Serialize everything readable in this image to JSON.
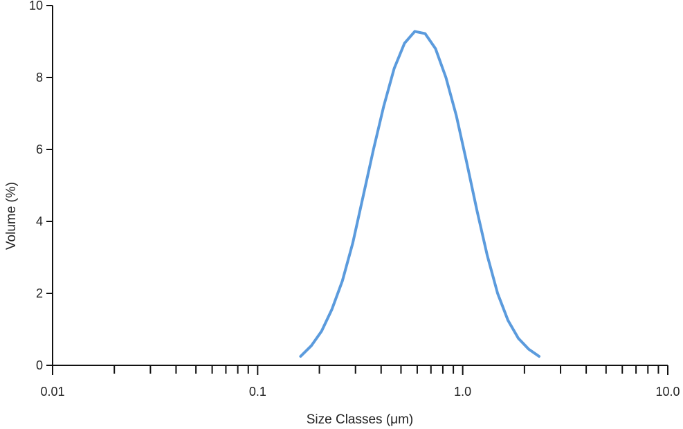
{
  "chart_data": {
    "type": "line",
    "title": "",
    "xlabel": "Size Classes (μm)",
    "ylabel": "Volume (%)",
    "x_scale": "log",
    "xlim": [
      0.01,
      10.0
    ],
    "ylim": [
      0,
      10
    ],
    "grid": false,
    "x_ticks": [
      {
        "value": 0.01,
        "label": "0.01"
      },
      {
        "value": 0.1,
        "label": "0.1"
      },
      {
        "value": 1.0,
        "label": "1.0"
      },
      {
        "value": 10.0,
        "label": "10.0"
      }
    ],
    "y_ticks": [
      {
        "value": 0,
        "label": "0"
      },
      {
        "value": 2,
        "label": "2"
      },
      {
        "value": 4,
        "label": "4"
      },
      {
        "value": 6,
        "label": "6"
      },
      {
        "value": 8,
        "label": "8"
      },
      {
        "value": 10,
        "label": "10"
      }
    ],
    "colors": {
      "series": "#5b9bdd",
      "axis": "#111111"
    },
    "series": [
      {
        "points": [
          {
            "x": 0.162,
            "y": 0.25
          },
          {
            "x": 0.183,
            "y": 0.55
          },
          {
            "x": 0.205,
            "y": 0.95
          },
          {
            "x": 0.23,
            "y": 1.55
          },
          {
            "x": 0.259,
            "y": 2.35
          },
          {
            "x": 0.291,
            "y": 3.4
          },
          {
            "x": 0.327,
            "y": 4.7
          },
          {
            "x": 0.367,
            "y": 6.0
          },
          {
            "x": 0.412,
            "y": 7.2
          },
          {
            "x": 0.463,
            "y": 8.25
          },
          {
            "x": 0.52,
            "y": 8.95
          },
          {
            "x": 0.584,
            "y": 9.28
          },
          {
            "x": 0.656,
            "y": 9.22
          },
          {
            "x": 0.737,
            "y": 8.8
          },
          {
            "x": 0.828,
            "y": 8.0
          },
          {
            "x": 0.93,
            "y": 6.95
          },
          {
            "x": 1.045,
            "y": 5.65
          },
          {
            "x": 1.174,
            "y": 4.3
          },
          {
            "x": 1.318,
            "y": 3.05
          },
          {
            "x": 1.48,
            "y": 2.0
          },
          {
            "x": 1.663,
            "y": 1.25
          },
          {
            "x": 1.868,
            "y": 0.75
          },
          {
            "x": 2.098,
            "y": 0.45
          },
          {
            "x": 2.357,
            "y": 0.25
          }
        ]
      }
    ]
  }
}
